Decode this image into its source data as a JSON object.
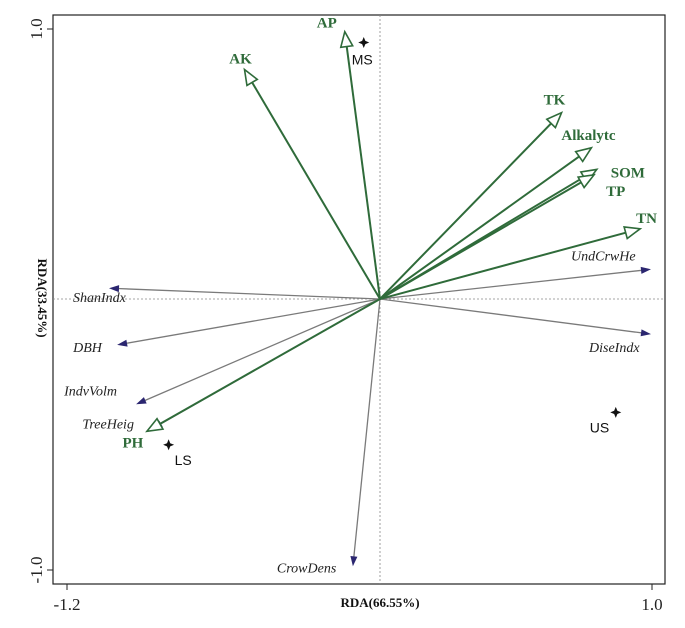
{
  "chart_data": {
    "type": "scatter",
    "subtype": "rda-biplot",
    "xlabel": "RDA(66.55%)",
    "ylabel": "RDA(33.45%)",
    "xlim": [
      -1.2,
      1.0
    ],
    "ylim": [
      -1.0,
      1.0
    ],
    "x_tick_labels": [
      "-1.2",
      "1.0"
    ],
    "y_tick_labels": [
      "1.0",
      "-1.0"
    ],
    "grid": false,
    "env_color": "#2f6b3a",
    "veg_color": "#7a7a7a",
    "veg_head_color": "#2b2670",
    "env_vectors": [
      {
        "name": "AP",
        "x": -0.13,
        "y": 0.99
      },
      {
        "name": "AK",
        "x": -0.5,
        "y": 0.85
      },
      {
        "name": "TK",
        "x": 0.67,
        "y": 0.69
      },
      {
        "name": "Alkalytc",
        "x": 0.78,
        "y": 0.56
      },
      {
        "name": "SOM",
        "x": 0.8,
        "y": 0.48
      },
      {
        "name": "TP",
        "x": 0.79,
        "y": 0.46
      },
      {
        "name": "TN",
        "x": 0.96,
        "y": 0.26
      },
      {
        "name": "PH",
        "x": -0.86,
        "y": -0.49
      }
    ],
    "veg_vectors": [
      {
        "name": "UndCrwHe",
        "x": 1.0,
        "y": 0.11
      },
      {
        "name": "DiseIndx",
        "x": 1.0,
        "y": -0.13
      },
      {
        "name": "ShanIndx",
        "x": -1.0,
        "y": 0.04
      },
      {
        "name": "DBH",
        "x": -0.97,
        "y": -0.17
      },
      {
        "name": "IndvVolm",
        "x": -0.9,
        "y": -0.39
      },
      {
        "name": "TreeHeig",
        "x": -0.84,
        "y": -0.48
      },
      {
        "name": "CrowDens",
        "x": -0.1,
        "y": -0.99
      }
    ],
    "sites": [
      {
        "name": "MS",
        "x": -0.06,
        "y": 0.95
      },
      {
        "name": "US",
        "x": 0.87,
        "y": -0.42
      },
      {
        "name": "LS",
        "x": -0.78,
        "y": -0.54
      }
    ]
  }
}
